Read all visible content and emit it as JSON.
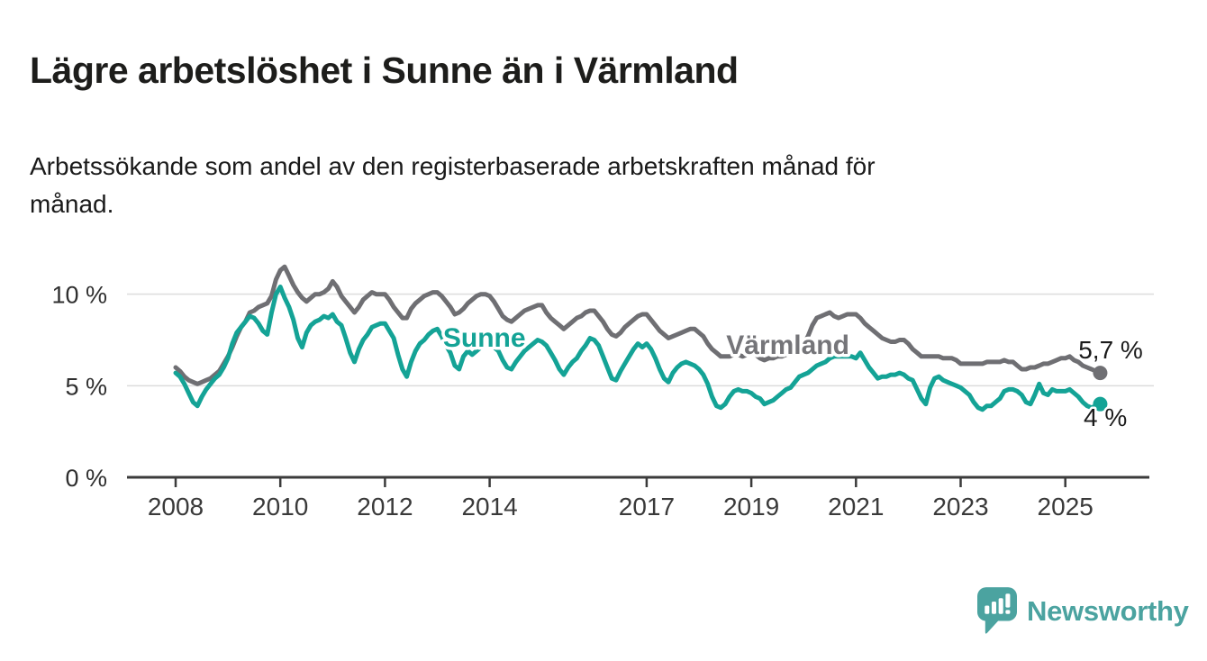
{
  "header": {
    "title": "Lägre arbetslöshet i Sunne än i Värmland",
    "subtitle_line1": "Arbetssökande som andel av den registerbaserade arbetskraften månad för",
    "subtitle_line2": "månad."
  },
  "footer": {
    "brand": "Newsworthy",
    "brand_color": "#4BA3A0"
  },
  "chart_data": {
    "type": "line",
    "title": "",
    "xlabel": "",
    "ylabel": "",
    "x_unit": "decimal year, monthly data",
    "x_start": 2008.0,
    "x_step_months": 1,
    "x_end_label": "Sep 2025",
    "xlim": [
      2007.9,
      2026.6
    ],
    "ylim": [
      0,
      12.6
    ],
    "grid": "horizontal",
    "x_ticks": [
      2008,
      2010,
      2012,
      2014,
      2017,
      2019,
      2021,
      2023,
      2025
    ],
    "y_ticks": [
      {
        "value": 0,
        "label": "0 %"
      },
      {
        "value": 5,
        "label": "5 %"
      },
      {
        "value": 10,
        "label": "10 %"
      }
    ],
    "series": [
      {
        "name": "Värmland",
        "color": "#6F6F73",
        "values": [
          6.0,
          5.8,
          5.5,
          5.3,
          5.2,
          5.1,
          5.2,
          5.3,
          5.4,
          5.6,
          5.8,
          6.2,
          6.6,
          7.1,
          7.7,
          8.2,
          8.5,
          9.0,
          9.1,
          9.3,
          9.4,
          9.5,
          9.9,
          10.8,
          11.3,
          11.5,
          11.0,
          10.5,
          10.1,
          9.8,
          9.6,
          9.8,
          10.0,
          10.0,
          10.1,
          10.3,
          10.7,
          10.4,
          9.9,
          9.6,
          9.3,
          9.0,
          9.3,
          9.7,
          9.9,
          10.1,
          10.0,
          10.0,
          10.0,
          9.7,
          9.3,
          9.0,
          8.7,
          8.7,
          9.2,
          9.5,
          9.7,
          9.9,
          10.0,
          10.1,
          10.1,
          9.9,
          9.6,
          9.3,
          8.9,
          9.0,
          9.2,
          9.5,
          9.7,
          9.9,
          10.0,
          10.0,
          9.9,
          9.6,
          9.2,
          8.8,
          8.6,
          8.5,
          8.7,
          8.9,
          9.1,
          9.2,
          9.3,
          9.4,
          9.4,
          9.0,
          8.7,
          8.5,
          8.3,
          8.1,
          8.3,
          8.5,
          8.7,
          8.8,
          9.0,
          9.1,
          9.1,
          8.8,
          8.5,
          8.1,
          7.8,
          7.7,
          7.9,
          8.2,
          8.4,
          8.6,
          8.8,
          8.9,
          8.9,
          8.6,
          8.3,
          8.0,
          7.8,
          7.6,
          7.7,
          7.8,
          7.9,
          8.0,
          8.1,
          8.1,
          7.9,
          7.7,
          7.3,
          7.0,
          6.8,
          6.6,
          6.6,
          6.6,
          6.7,
          6.7,
          6.6,
          6.7,
          6.8,
          6.7,
          6.5,
          6.4,
          6.5,
          6.5,
          6.6,
          6.6,
          6.7,
          6.8,
          6.9,
          7.1,
          7.3,
          7.7,
          8.3,
          8.7,
          8.8,
          8.9,
          9.0,
          8.8,
          8.7,
          8.8,
          8.9,
          8.9,
          8.9,
          8.7,
          8.4,
          8.2,
          8.0,
          7.8,
          7.6,
          7.5,
          7.4,
          7.4,
          7.5,
          7.5,
          7.3,
          7.0,
          6.8,
          6.6,
          6.6,
          6.6,
          6.6,
          6.6,
          6.5,
          6.5,
          6.5,
          6.4,
          6.2,
          6.2,
          6.2,
          6.2,
          6.2,
          6.2,
          6.3,
          6.3,
          6.3,
          6.3,
          6.4,
          6.3,
          6.3,
          6.1,
          5.9,
          5.9,
          6.0,
          6.0,
          6.1,
          6.2,
          6.2,
          6.3,
          6.4,
          6.5,
          6.5,
          6.6,
          6.4,
          6.3,
          6.1,
          6.0,
          5.9,
          5.8,
          5.7
        ]
      },
      {
        "name": "Sunne",
        "color": "#14A396",
        "values": [
          5.7,
          5.5,
          5.1,
          4.6,
          4.1,
          3.9,
          4.4,
          4.8,
          5.1,
          5.4,
          5.6,
          6.0,
          6.5,
          7.3,
          7.9,
          8.2,
          8.5,
          8.8,
          8.7,
          8.4,
          8.0,
          7.8,
          9.0,
          10.0,
          10.4,
          9.8,
          9.3,
          8.6,
          7.6,
          7.1,
          7.9,
          8.3,
          8.5,
          8.6,
          8.8,
          8.7,
          8.9,
          8.5,
          8.3,
          7.6,
          6.8,
          6.3,
          7.0,
          7.5,
          7.8,
          8.2,
          8.3,
          8.4,
          8.4,
          8.0,
          7.6,
          6.7,
          5.9,
          5.5,
          6.3,
          6.9,
          7.3,
          7.5,
          7.8,
          8.0,
          8.1,
          7.7,
          7.2,
          6.8,
          6.1,
          5.9,
          6.6,
          6.9,
          6.7,
          6.9,
          7.1,
          7.3,
          7.4,
          7.1,
          6.9,
          6.4,
          6.0,
          5.9,
          6.3,
          6.6,
          6.9,
          7.1,
          7.3,
          7.5,
          7.4,
          7.2,
          6.8,
          6.4,
          5.9,
          5.6,
          6.0,
          6.3,
          6.5,
          6.9,
          7.2,
          7.6,
          7.5,
          7.2,
          6.6,
          6.0,
          5.4,
          5.3,
          5.8,
          6.2,
          6.6,
          7.0,
          7.3,
          7.1,
          7.3,
          7.0,
          6.5,
          5.9,
          5.4,
          5.2,
          5.7,
          6.0,
          6.2,
          6.3,
          6.2,
          6.1,
          5.9,
          5.6,
          5.1,
          4.4,
          3.9,
          3.8,
          4.0,
          4.4,
          4.7,
          4.8,
          4.7,
          4.7,
          4.6,
          4.4,
          4.3,
          4.0,
          4.1,
          4.2,
          4.4,
          4.6,
          4.8,
          4.9,
          5.2,
          5.5,
          5.6,
          5.7,
          5.9,
          6.1,
          6.2,
          6.3,
          6.5,
          6.6,
          6.6,
          6.6,
          6.6,
          6.6,
          6.5,
          6.8,
          6.4,
          6.0,
          5.7,
          5.4,
          5.5,
          5.5,
          5.6,
          5.6,
          5.7,
          5.6,
          5.4,
          5.3,
          4.8,
          4.3,
          4.0,
          4.9,
          5.4,
          5.5,
          5.3,
          5.2,
          5.1,
          5.0,
          4.9,
          4.7,
          4.5,
          4.1,
          3.8,
          3.7,
          3.9,
          3.9,
          4.1,
          4.3,
          4.7,
          4.8,
          4.8,
          4.7,
          4.5,
          4.1,
          4.0,
          4.5,
          5.1,
          4.6,
          4.5,
          4.8,
          4.7,
          4.7,
          4.7,
          4.8,
          4.6,
          4.4,
          4.1,
          3.9,
          3.8,
          3.9,
          4.0
        ]
      }
    ],
    "series_labels": [
      {
        "text": "Sunne",
        "color": "#14A396",
        "x": 2013.11,
        "y": 7.13
      },
      {
        "text": "Värmland",
        "color": "#757579",
        "x": 2018.52,
        "y": 6.74
      }
    ],
    "end_labels": [
      {
        "text": "5,7 %",
        "series": "Värmland",
        "x": 2025.25,
        "y": 6.49
      },
      {
        "text": "4 %",
        "series": "Sunne",
        "x": 2025.35,
        "y": 2.8
      }
    ],
    "legend_position": "inline-on-lines"
  }
}
